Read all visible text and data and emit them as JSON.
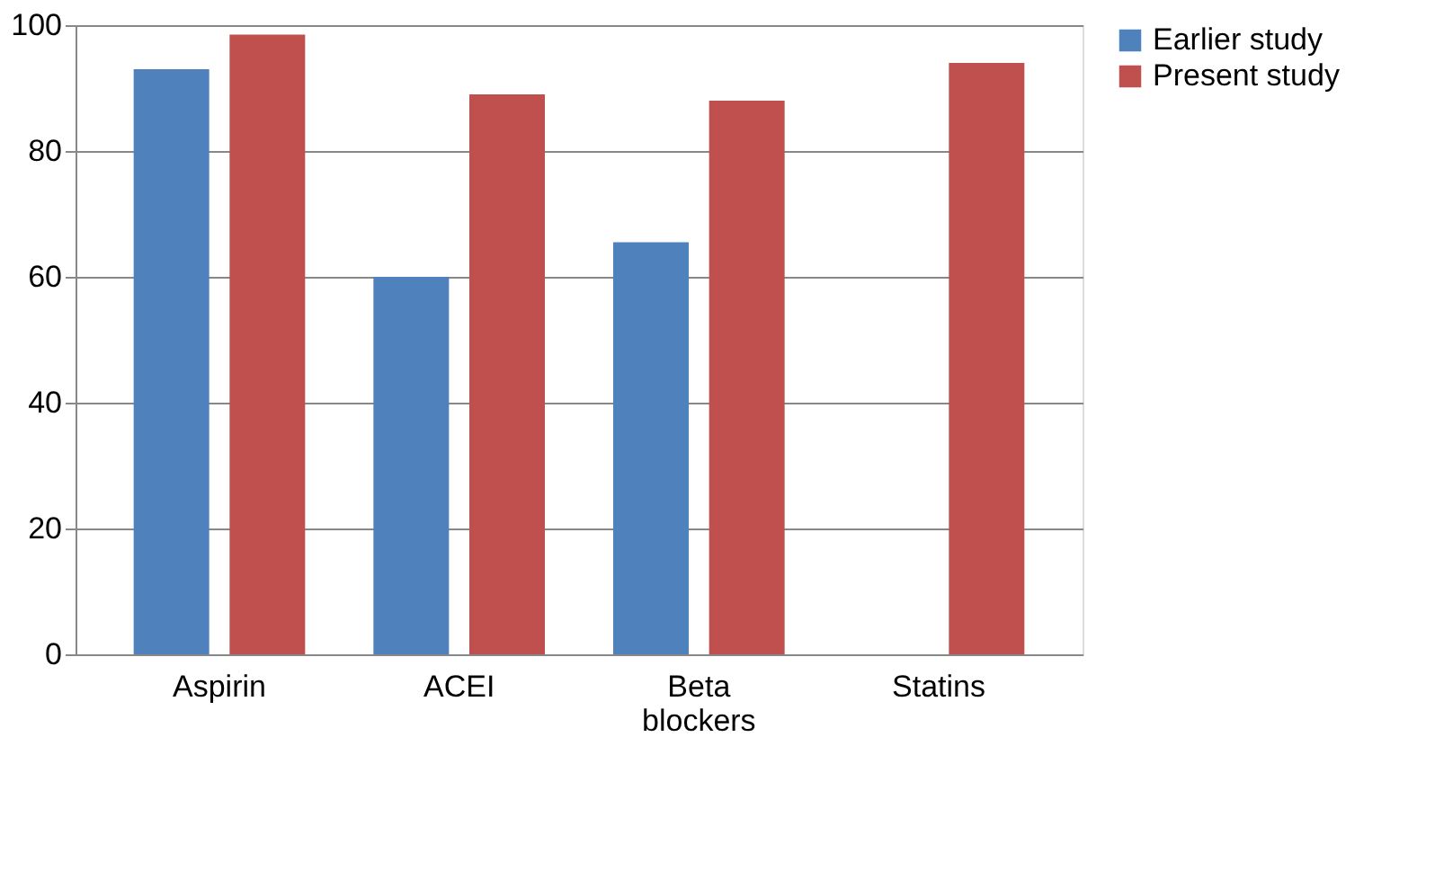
{
  "chart_data": {
    "type": "bar",
    "categories": [
      "Aspirin",
      "ACEI",
      "Beta blockers",
      "Statins"
    ],
    "series": [
      {
        "name": "Earlier study",
        "color": "#4f81bd",
        "values": [
          93,
          60,
          65.5,
          null
        ]
      },
      {
        "name": "Present study",
        "color": "#c0504d",
        "values": [
          98.5,
          89,
          88,
          94
        ]
      }
    ],
    "ylim": [
      0,
      100
    ],
    "yticks": [
      0,
      20,
      40,
      60,
      80,
      100
    ],
    "grid": "y",
    "legend": "right"
  }
}
